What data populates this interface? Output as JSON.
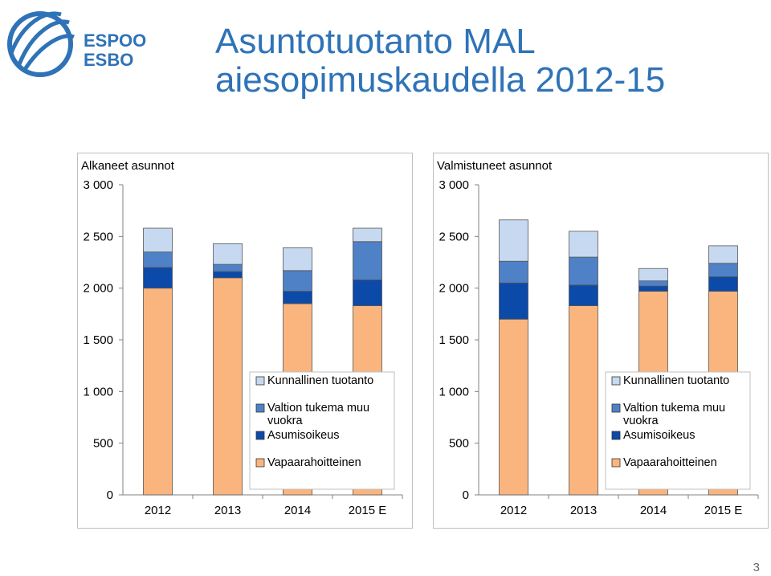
{
  "title_lines": [
    "Asuntotuotanto MAL",
    "aiesopimuskaudella 2012-15"
  ],
  "logo": {
    "line1": "ESPOO",
    "line2": "ESBO",
    "brand_color": "#2f73b7"
  },
  "page_number": "3",
  "colors": {
    "Kunnallinen tuotanto": "#c6d9f1",
    "Valtion tukema muu vuokra": "#4f81c7",
    "Asumisoikeus": "#0b4aa8",
    "Vapaarahoitteinen": "#fab57f"
  },
  "chart_data": [
    {
      "type": "bar",
      "stacked": true,
      "title": "Alkaneet asunnot",
      "categories": [
        "2012",
        "2013",
        "2014",
        "2015 E"
      ],
      "yticks": [
        "0",
        "500",
        "1 000",
        "1 500",
        "2 000",
        "2 500",
        "3 000"
      ],
      "ylim": [
        0,
        3000
      ],
      "series": [
        {
          "name": "Vapaarahoitteinen",
          "values": [
            2000,
            2100,
            1850,
            1830
          ]
        },
        {
          "name": "Asumisoikeus",
          "values": [
            200,
            60,
            120,
            250
          ]
        },
        {
          "name": "Valtion tukema muu vuokra",
          "values": [
            150,
            70,
            200,
            370
          ]
        },
        {
          "name": "Kunnallinen tuotanto",
          "values": [
            230,
            200,
            220,
            130
          ]
        }
      ],
      "legend": [
        "Kunnallinen tuotanto",
        "Valtion tukema muu vuokra",
        "Asumisoikeus",
        "Vapaarahoitteinen"
      ],
      "legend_position": "right, inside plot",
      "grid": false
    },
    {
      "type": "bar",
      "stacked": true,
      "title": "Valmistuneet asunnot",
      "categories": [
        "2012",
        "2013",
        "2014",
        "2015 E"
      ],
      "yticks": [
        "0",
        "500",
        "1 000",
        "1 500",
        "2 000",
        "2 500",
        "3 000"
      ],
      "ylim": [
        0,
        3000
      ],
      "series": [
        {
          "name": "Vapaarahoitteinen",
          "values": [
            1700,
            1830,
            1970,
            1970
          ]
        },
        {
          "name": "Asumisoikeus",
          "values": [
            350,
            200,
            50,
            140
          ]
        },
        {
          "name": "Valtion tukema muu vuokra",
          "values": [
            210,
            270,
            50,
            130
          ]
        },
        {
          "name": "Kunnallinen tuotanto",
          "values": [
            400,
            250,
            120,
            170
          ]
        }
      ],
      "legend": [
        "Kunnallinen tuotanto",
        "Valtion tukema muu vuokra",
        "Asumisoikeus",
        "Vapaarahoitteinen"
      ],
      "legend_position": "right, inside plot",
      "grid": false
    }
  ]
}
